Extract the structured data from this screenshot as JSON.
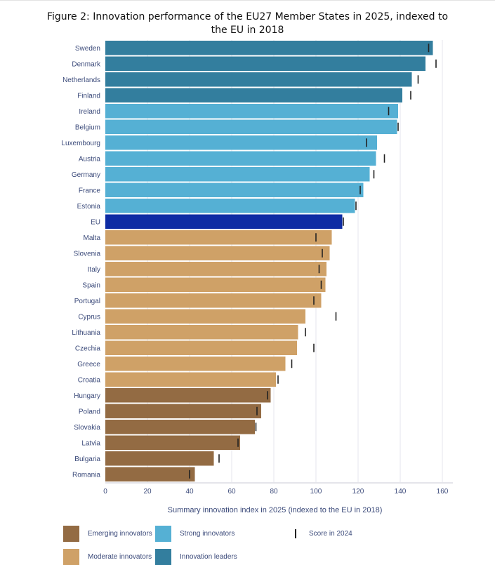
{
  "title": "Figure 2: Innovation performance of the EU27 Member States in 2025, indexed to the EU in 2018",
  "colors": {
    "emerging": "#936b43",
    "moderate": "#cfa167",
    "strong": "#55b0d4",
    "leaders": "#337e9e",
    "eu": "#0e2ca4",
    "marker": "#222222",
    "grid": "#e6e6ee"
  },
  "legend": [
    {
      "key": "emerging",
      "label": "Emerging innovators"
    },
    {
      "key": "strong",
      "label": "Strong innovators"
    },
    {
      "key": "marker",
      "label": "Score in 2024"
    },
    {
      "key": "moderate",
      "label": "Moderate innovators"
    },
    {
      "key": "leaders",
      "label": "Innovation leaders"
    }
  ],
  "chart_data": {
    "type": "bar",
    "orientation": "horizontal",
    "title": "Figure 2: Innovation performance of the EU27 Member States in 2025, indexed to the EU in 2018",
    "xlabel": "Summary innovation index in 2025 (indexed to the EU in 2018)",
    "ylabel": "",
    "xlim": [
      0,
      165
    ],
    "xticks": [
      0,
      20,
      40,
      60,
      80,
      100,
      120,
      140,
      160
    ],
    "grid": "vertical",
    "legend_position": "bottom",
    "categories": [
      "Sweden",
      "Denmark",
      "Netherlands",
      "Finland",
      "Ireland",
      "Belgium",
      "Luxembourg",
      "Austria",
      "Germany",
      "France",
      "Estonia",
      "EU",
      "Malta",
      "Slovenia",
      "Italy",
      "Spain",
      "Portugal",
      "Cyprus",
      "Lithuania",
      "Czechia",
      "Greece",
      "Croatia",
      "Hungary",
      "Poland",
      "Slovakia",
      "Latvia",
      "Bulgaria",
      "Romania"
    ],
    "groups": [
      "leaders",
      "leaders",
      "leaders",
      "leaders",
      "strong",
      "strong",
      "strong",
      "strong",
      "strong",
      "strong",
      "strong",
      "eu",
      "moderate",
      "moderate",
      "moderate",
      "moderate",
      "moderate",
      "moderate",
      "moderate",
      "moderate",
      "moderate",
      "moderate",
      "emerging",
      "emerging",
      "emerging",
      "emerging",
      "emerging",
      "emerging"
    ],
    "series": [
      {
        "name": "2025",
        "values": [
          155.5,
          152.0,
          145.5,
          141.0,
          139.0,
          138.5,
          129.0,
          128.5,
          125.5,
          122.5,
          118.5,
          112.5,
          107.5,
          106.5,
          105.0,
          104.5,
          102.5,
          95.0,
          91.5,
          91.0,
          85.5,
          81.0,
          78.5,
          74.0,
          71.0,
          64.0,
          51.5,
          42.5
        ]
      },
      {
        "name": "Score in 2024",
        "values": [
          153.5,
          157.0,
          148.5,
          145.0,
          134.5,
          139.0,
          124.0,
          132.5,
          127.5,
          121.0,
          119.0,
          113.0,
          100.0,
          103.0,
          101.5,
          102.5,
          99.0,
          109.5,
          95.0,
          99.0,
          88.5,
          82.0,
          77.0,
          72.0,
          71.5,
          63.0,
          54.0,
          40.0
        ]
      }
    ]
  }
}
